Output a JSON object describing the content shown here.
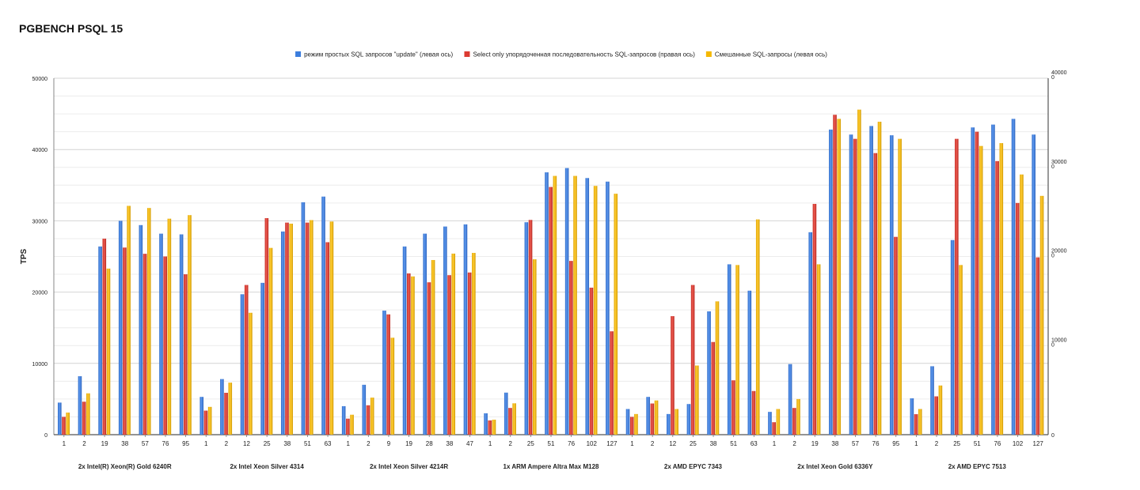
{
  "chart_data": {
    "type": "bar",
    "title": "PGBENCH PSQL 15",
    "ylabel": "TPS",
    "ylim": [
      0,
      50000
    ],
    "yticks": [
      "0",
      "10000",
      "20000",
      "30000",
      "40000",
      "50000"
    ],
    "y2lim": [
      0,
      40000
    ],
    "y2ticks": [
      "0",
      "10000\n0",
      "20000\n0",
      "30000\n0",
      "40000\n0"
    ],
    "legend_position": "top",
    "grid": true,
    "series": [
      {
        "name": "режим простых SQL запросов \"update\" (левая ось)",
        "color": "#3b7ddd",
        "axis": "left"
      },
      {
        "name": "Select only упорядоченная последовательность SQL-запросов (правая ось)",
        "color": "#dc3b32",
        "axis": "right"
      },
      {
        "name": "Смешанные SQL-запросы (левая ось)",
        "color": "#f5b800",
        "axis": "left"
      }
    ],
    "groups": [
      {
        "label": "2x Intel(R) Xeon(R) Gold 6240R",
        "categories": [
          "1",
          "2",
          "19",
          "38",
          "57",
          "76",
          "95"
        ],
        "values": [
          [
            4500,
            8200,
            26400,
            30000,
            29400,
            28200,
            28100
          ],
          [
            2000,
            3700,
            22000,
            21000,
            20300,
            20000,
            18000
          ],
          [
            3100,
            5800,
            23300,
            32100,
            31800,
            30300,
            30800
          ]
        ]
      },
      {
        "label": "2x Intel Xeon Silver 4314",
        "categories": [
          "1",
          "2",
          "12",
          "25",
          "38",
          "51",
          "63"
        ],
        "values": [
          [
            5300,
            7800,
            19700,
            21300,
            28500,
            32600,
            33400
          ],
          [
            2700,
            4700,
            16800,
            24300,
            23800,
            23800,
            21600
          ],
          [
            3900,
            7300,
            17100,
            26200,
            29600,
            30100,
            29900
          ]
        ]
      },
      {
        "label": "2x Intel Xeon Silver 4214R",
        "categories": [
          "1",
          "2",
          "9",
          "19",
          "28",
          "38",
          "47"
        ],
        "values": [
          [
            4000,
            7000,
            17400,
            26400,
            28200,
            29200,
            29500
          ],
          [
            1800,
            3300,
            13500,
            18100,
            17100,
            17900,
            18200
          ],
          [
            2800,
            5200,
            13600,
            22200,
            24500,
            25400,
            25500
          ]
        ]
      },
      {
        "label": "1x ARM Ampere Altra Max M128",
        "categories": [
          "1",
          "2",
          "25",
          "51",
          "76",
          "102",
          "127"
        ],
        "values": [
          [
            3000,
            5900,
            29800,
            36800,
            37400,
            36000,
            35500
          ],
          [
            1600,
            3000,
            24100,
            27800,
            19500,
            16500,
            11600
          ],
          [
            2100,
            4400,
            24600,
            36300,
            36300,
            34900,
            33800
          ]
        ]
      },
      {
        "label": "2x AMD EPYC 7343",
        "categories": [
          "1",
          "2",
          "12",
          "25",
          "38",
          "51",
          "63"
        ],
        "values": [
          [
            3600,
            5300,
            2900,
            4300,
            17300,
            23900,
            20200
          ],
          [
            2000,
            3500,
            13300,
            16800,
            10400,
            6100,
            4900
          ],
          [
            2900,
            4800,
            3600,
            9700,
            18700,
            23800,
            30200
          ]
        ]
      },
      {
        "label": "2x Intel Xeon Gold 6336Y",
        "categories": [
          "1",
          "2",
          "19",
          "38",
          "57",
          "76",
          "95"
        ],
        "values": [
          [
            3200,
            9900,
            28400,
            42800,
            42100,
            43300,
            42000
          ],
          [
            1400,
            3000,
            25900,
            35900,
            33200,
            31600,
            22200
          ],
          [
            3600,
            5000,
            23900,
            44300,
            45600,
            43900,
            41500
          ]
        ]
      },
      {
        "label": "2x AMD EPYC 7513",
        "categories": [
          "1",
          "2",
          "25",
          "51",
          "76",
          "102",
          "127"
        ],
        "values": [
          [
            5100,
            9600,
            27300,
            43100,
            43500,
            44300,
            42100
          ],
          [
            2300,
            4300,
            33200,
            34000,
            30700,
            26000,
            19900
          ],
          [
            3600,
            6900,
            23800,
            40500,
            40900,
            36500,
            33500
          ]
        ]
      }
    ]
  }
}
